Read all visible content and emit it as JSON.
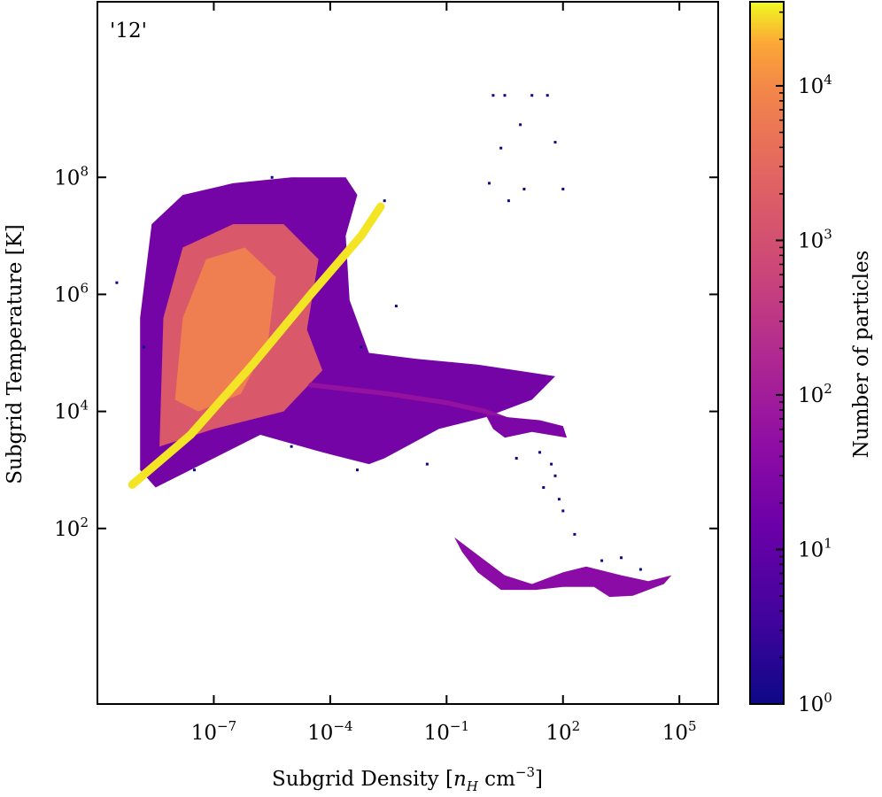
{
  "chart_data": {
    "type": "heatmap",
    "title": "",
    "annotation": "'12'",
    "xlabel_parts": [
      "Subgrid Density [",
      "n",
      "H",
      " cm",
      "−3",
      "]"
    ],
    "ylabel": "Subgrid Temperature [K]",
    "x_scale": "log",
    "y_scale": "log",
    "xlim": [
      1e-10,
      1000000.0
    ],
    "ylim": [
      0.1,
      100000000000.0
    ],
    "x_ticks": [
      1e-07,
      0.0001,
      0.1,
      100.0,
      100000.0
    ],
    "x_tick_labels": [
      {
        "base": "10",
        "exp": "−7"
      },
      {
        "base": "10",
        "exp": "−4"
      },
      {
        "base": "10",
        "exp": "−1"
      },
      {
        "base": "10",
        "exp": "2"
      },
      {
        "base": "10",
        "exp": "5"
      }
    ],
    "y_ticks": [
      100.0,
      10000.0,
      1000000.0,
      100000000.0
    ],
    "y_tick_labels": [
      {
        "base": "10",
        "exp": "2"
      },
      {
        "base": "10",
        "exp": "4"
      },
      {
        "base": "10",
        "exp": "6"
      },
      {
        "base": "10",
        "exp": "8"
      }
    ],
    "colorbar": {
      "label": "Number of particles",
      "scale": "log",
      "colormap": "plasma",
      "range": [
        1,
        35000
      ],
      "ticks": [
        1,
        10,
        100,
        1000,
        10000
      ],
      "tick_labels": [
        {
          "base": "10",
          "exp": "0"
        },
        {
          "base": "10",
          "exp": "1"
        },
        {
          "base": "10",
          "exp": "2"
        },
        {
          "base": "10",
          "exp": "3"
        },
        {
          "base": "10",
          "exp": "4"
        }
      ]
    },
    "features": [
      {
        "kind": "region",
        "name": "diffuse-halo",
        "polygon": [
          [
            -8.9,
            3.0
          ],
          [
            -8.9,
            5.6
          ],
          [
            -8.6,
            7.2
          ],
          [
            -7.8,
            7.7
          ],
          [
            -6.5,
            7.9
          ],
          [
            -5.0,
            8.0
          ],
          [
            -3.6,
            8.0
          ],
          [
            -3.3,
            7.7
          ],
          [
            -3.6,
            7.0
          ],
          [
            -3.5,
            5.9
          ],
          [
            -3.0,
            5.0
          ],
          [
            -1.8,
            4.9
          ],
          [
            -0.2,
            4.8
          ],
          [
            0.8,
            4.7
          ],
          [
            1.8,
            4.6
          ],
          [
            1.2,
            4.2
          ],
          [
            0.0,
            3.9
          ],
          [
            -1.2,
            3.7
          ],
          [
            -2.6,
            3.2
          ],
          [
            -3.0,
            3.1
          ],
          [
            -4.2,
            3.3
          ],
          [
            -5.8,
            3.6
          ],
          [
            -7.0,
            3.2
          ],
          [
            -8.5,
            2.7
          ]
        ],
        "intensity": 20
      },
      {
        "kind": "region",
        "name": "warm-core",
        "polygon": [
          [
            -8.4,
            3.4
          ],
          [
            -8.3,
            5.6
          ],
          [
            -7.8,
            6.8
          ],
          [
            -6.5,
            7.2
          ],
          [
            -5.2,
            7.2
          ],
          [
            -4.3,
            6.6
          ],
          [
            -4.6,
            5.4
          ],
          [
            -4.2,
            4.7
          ],
          [
            -5.2,
            4.0
          ],
          [
            -7.0,
            3.7
          ]
        ],
        "intensity": 1500
      },
      {
        "kind": "region",
        "name": "hot-core",
        "polygon": [
          [
            -8.0,
            4.2
          ],
          [
            -7.8,
            5.6
          ],
          [
            -7.2,
            6.6
          ],
          [
            -6.2,
            6.8
          ],
          [
            -5.4,
            6.3
          ],
          [
            -5.6,
            5.2
          ],
          [
            -6.3,
            4.3
          ],
          [
            -7.4,
            4.0
          ]
        ],
        "intensity": 7000
      },
      {
        "kind": "ridge",
        "name": "adiabat",
        "points": [
          [
            -9.1,
            2.75
          ],
          [
            -7.6,
            3.6
          ],
          [
            -6.0,
            4.8
          ],
          [
            -4.5,
            6.0
          ],
          [
            -3.2,
            7.0
          ],
          [
            -2.7,
            7.5
          ]
        ],
        "width": 0.14,
        "intensity": 30000
      },
      {
        "kind": "ridge",
        "name": "cooling-track",
        "points": [
          [
            -4.5,
            4.45
          ],
          [
            -2.5,
            4.3
          ],
          [
            -1.0,
            4.15
          ],
          [
            0.0,
            4.0
          ],
          [
            0.6,
            3.85
          ]
        ],
        "width": 0.08,
        "intensity": 60
      },
      {
        "kind": "region",
        "name": "dense-branch",
        "polygon": [
          [
            0.0,
            3.95
          ],
          [
            0.6,
            3.9
          ],
          [
            1.4,
            3.85
          ],
          [
            2.0,
            3.75
          ],
          [
            2.1,
            3.55
          ],
          [
            1.2,
            3.65
          ],
          [
            0.5,
            3.55
          ],
          [
            0.2,
            3.7
          ]
        ],
        "intensity": 25
      },
      {
        "kind": "region",
        "name": "cold-tail",
        "polygon": [
          [
            -0.8,
            1.85
          ],
          [
            -0.5,
            1.7
          ],
          [
            0.5,
            1.2
          ],
          [
            1.2,
            1.05
          ],
          [
            2.0,
            1.25
          ],
          [
            2.6,
            1.35
          ],
          [
            3.5,
            1.2
          ],
          [
            4.2,
            1.1
          ],
          [
            4.8,
            1.2
          ],
          [
            4.6,
            1.05
          ],
          [
            3.8,
            0.85
          ],
          [
            3.2,
            0.83
          ],
          [
            2.8,
            1.0
          ],
          [
            2.0,
            1.0
          ],
          [
            1.3,
            0.95
          ],
          [
            0.4,
            0.95
          ],
          [
            -0.2,
            1.25
          ],
          [
            -0.6,
            1.6
          ]
        ],
        "intensity": 40
      }
    ],
    "sparse_points": [
      [
        0.2,
        9.4
      ],
      [
        0.5,
        9.4
      ],
      [
        1.2,
        9.4
      ],
      [
        1.6,
        9.4
      ],
      [
        0.9,
        8.9
      ],
      [
        1.8,
        8.6
      ],
      [
        0.4,
        8.5
      ],
      [
        0.1,
        7.9
      ],
      [
        1.0,
        7.8
      ],
      [
        2.0,
        7.8
      ],
      [
        0.6,
        7.6
      ],
      [
        -5.5,
        8.0
      ],
      [
        -2.6,
        7.6
      ],
      [
        -9.5,
        6.2
      ],
      [
        -8.8,
        5.1
      ],
      [
        -3.2,
        5.1
      ],
      [
        -2.3,
        5.8
      ],
      [
        1.4,
        3.3
      ],
      [
        1.7,
        3.1
      ],
      [
        1.8,
        2.9
      ],
      [
        1.9,
        2.5
      ],
      [
        2.0,
        2.3
      ],
      [
        2.3,
        1.9
      ],
      [
        1.5,
        2.7
      ],
      [
        0.8,
        3.2
      ],
      [
        -1.5,
        3.1
      ],
      [
        -3.3,
        3.0
      ],
      [
        -5.0,
        3.4
      ],
      [
        -7.5,
        3.0
      ],
      [
        3.5,
        1.5
      ],
      [
        4.0,
        1.3
      ],
      [
        3.0,
        1.45
      ]
    ],
    "grid": false,
    "legend": "none"
  }
}
